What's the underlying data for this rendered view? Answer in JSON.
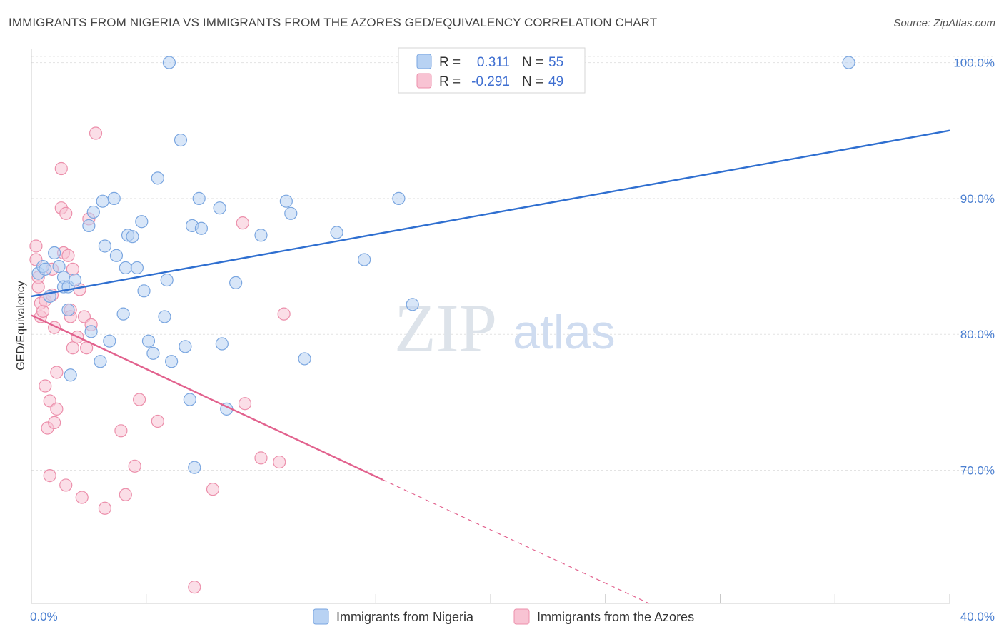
{
  "header": {
    "title": "IMMIGRANTS FROM NIGERIA VS IMMIGRANTS FROM THE AZORES GED/EQUIVALENCY CORRELATION CHART",
    "source": "Source: ZipAtlas.com"
  },
  "watermark": {
    "zip": "ZIP",
    "atlas": "atlas"
  },
  "colors": {
    "nigeria_fill": "#b8d2f3",
    "nigeria_stroke": "#7aa6e0",
    "nigeria_line": "#2f6fd0",
    "azores_fill": "#f8c3d3",
    "azores_stroke": "#ec8fab",
    "azores_line": "#e2628e"
  },
  "stats": {
    "r_label": "R =",
    "n_label": "N =",
    "nigeria": {
      "r": "0.311",
      "n": "55"
    },
    "azores": {
      "r": "-0.291",
      "n": "49"
    }
  },
  "chart_data": {
    "type": "scatter",
    "title": "IMMIGRANTS FROM NIGERIA VS IMMIGRANTS FROM THE AZORES GED/EQUIVALENCY CORRELATION CHART",
    "xlabel": "",
    "ylabel": "GED/Equivalency",
    "xlim": [
      0,
      40
    ],
    "ylim": [
      60.2,
      102.5
    ],
    "x_tick_labels": [
      {
        "v": 0,
        "label": "0.0%"
      },
      {
        "v": 40,
        "label": "40.0%"
      }
    ],
    "y_ticks": [
      {
        "v": 70,
        "label": "70.0%"
      },
      {
        "v": 80,
        "label": "80.0%"
      },
      {
        "v": 90,
        "label": "90.0%"
      },
      {
        "v": 100,
        "label": "100.0%"
      }
    ],
    "grid": true,
    "legend_position": "bottom",
    "series": [
      {
        "name": "Immigrants from Nigeria",
        "trend": {
          "x": [
            0,
            40
          ],
          "y": [
            82.8,
            95.0
          ],
          "dashed_from": null
        },
        "points": [
          [
            0.3,
            84.5
          ],
          [
            0.5,
            85.0
          ],
          [
            0.6,
            84.8
          ],
          [
            0.8,
            82.8
          ],
          [
            1.0,
            86.0
          ],
          [
            1.2,
            85.0
          ],
          [
            1.4,
            84.2
          ],
          [
            1.4,
            83.5
          ],
          [
            1.6,
            83.5
          ],
          [
            1.9,
            84.0
          ],
          [
            1.6,
            81.8
          ],
          [
            2.5,
            88.0
          ],
          [
            2.6,
            80.2
          ],
          [
            2.7,
            89.0
          ],
          [
            3.0,
            78.0
          ],
          [
            3.1,
            89.8
          ],
          [
            3.2,
            86.5
          ],
          [
            3.4,
            79.5
          ],
          [
            3.6,
            90.0
          ],
          [
            3.7,
            85.8
          ],
          [
            4.0,
            81.5
          ],
          [
            4.1,
            84.9
          ],
          [
            4.2,
            87.3
          ],
          [
            4.4,
            87.2
          ],
          [
            4.6,
            84.9
          ],
          [
            4.8,
            88.3
          ],
          [
            4.9,
            83.2
          ],
          [
            5.1,
            79.5
          ],
          [
            5.3,
            78.6
          ],
          [
            5.5,
            91.5
          ],
          [
            5.8,
            81.3
          ],
          [
            5.9,
            84.0
          ],
          [
            6.0,
            100.0
          ],
          [
            6.1,
            78.0
          ],
          [
            6.5,
            94.3
          ],
          [
            6.7,
            79.1
          ],
          [
            6.9,
            75.2
          ],
          [
            7.0,
            88.0
          ],
          [
            7.1,
            70.2
          ],
          [
            7.3,
            90.0
          ],
          [
            7.4,
            87.8
          ],
          [
            8.2,
            89.3
          ],
          [
            8.3,
            79.3
          ],
          [
            8.5,
            74.5
          ],
          [
            8.9,
            83.8
          ],
          [
            10.0,
            87.3
          ],
          [
            11.1,
            89.8
          ],
          [
            11.3,
            88.9
          ],
          [
            11.9,
            78.2
          ],
          [
            13.3,
            87.5
          ],
          [
            14.5,
            85.5
          ],
          [
            16.0,
            90.0
          ],
          [
            16.6,
            82.2
          ],
          [
            35.6,
            100.0
          ],
          [
            1.7,
            77.0
          ]
        ]
      },
      {
        "name": "Immigrants from the Azores",
        "trend": {
          "x": [
            0,
            15.3,
            26.9
          ],
          "y": [
            81.4,
            69.3,
            60.2
          ],
          "dashed_from": 15.3
        },
        "points": [
          [
            0.2,
            86.5
          ],
          [
            0.2,
            85.5
          ],
          [
            0.3,
            84.2
          ],
          [
            0.3,
            83.5
          ],
          [
            0.4,
            82.3
          ],
          [
            0.4,
            81.3
          ],
          [
            0.5,
            81.7
          ],
          [
            0.6,
            82.5
          ],
          [
            0.6,
            76.2
          ],
          [
            0.7,
            73.1
          ],
          [
            0.8,
            75.1
          ],
          [
            0.8,
            69.6
          ],
          [
            0.9,
            84.8
          ],
          [
            0.9,
            82.9
          ],
          [
            1.0,
            80.5
          ],
          [
            1.0,
            73.5
          ],
          [
            1.1,
            77.2
          ],
          [
            1.1,
            74.5
          ],
          [
            1.3,
            92.2
          ],
          [
            1.3,
            89.3
          ],
          [
            1.4,
            86.0
          ],
          [
            1.5,
            68.9
          ],
          [
            1.5,
            88.9
          ],
          [
            1.6,
            85.8
          ],
          [
            1.7,
            81.8
          ],
          [
            1.7,
            81.3
          ],
          [
            1.8,
            79.0
          ],
          [
            1.8,
            84.8
          ],
          [
            2.0,
            79.8
          ],
          [
            2.1,
            83.3
          ],
          [
            2.2,
            68.0
          ],
          [
            2.3,
            81.3
          ],
          [
            2.4,
            79.0
          ],
          [
            2.5,
            88.5
          ],
          [
            2.6,
            80.7
          ],
          [
            2.8,
            94.8
          ],
          [
            3.2,
            67.2
          ],
          [
            3.9,
            72.9
          ],
          [
            4.1,
            68.2
          ],
          [
            4.5,
            70.3
          ],
          [
            4.7,
            75.2
          ],
          [
            5.5,
            73.6
          ],
          [
            7.1,
            61.4
          ],
          [
            7.9,
            68.6
          ],
          [
            9.2,
            88.2
          ],
          [
            9.3,
            74.9
          ],
          [
            10.0,
            70.9
          ],
          [
            11.0,
            81.5
          ],
          [
            10.8,
            70.6
          ]
        ]
      }
    ]
  }
}
